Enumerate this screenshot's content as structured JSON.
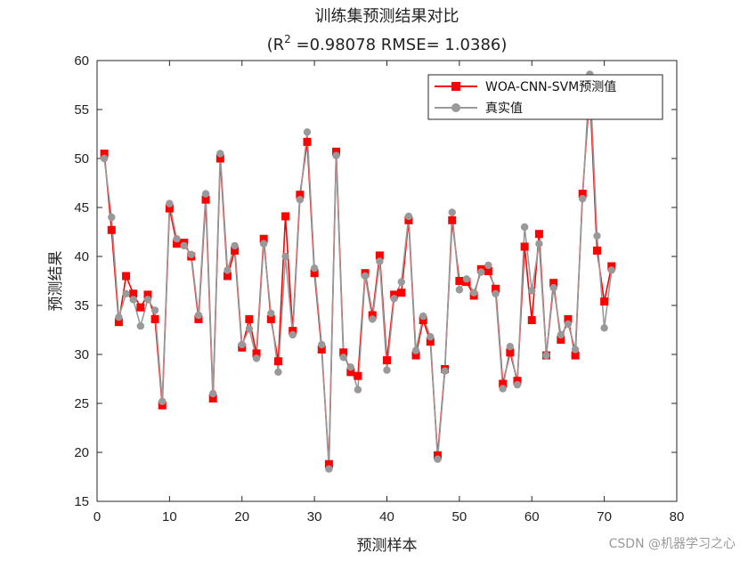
{
  "chart_data": {
    "type": "line",
    "title": "训练集预测结果对比",
    "subtitle_prefix": "(R",
    "subtitle_sup": "2",
    "subtitle_suffix": " =0.98078 RMSE= 1.0386)",
    "xlabel": "预测样本",
    "ylabel": "预测结果",
    "xlim": [
      0,
      80
    ],
    "ylim": [
      15,
      60
    ],
    "xticks": [
      0,
      10,
      20,
      30,
      40,
      50,
      60,
      70,
      80
    ],
    "yticks": [
      15,
      20,
      25,
      30,
      35,
      40,
      45,
      50,
      55,
      60
    ],
    "legend_position": "top-right",
    "series": [
      {
        "name": "WOA-CNN-SVM预测值",
        "color": "#ff0000",
        "marker": "square",
        "values": [
          50.5,
          42.7,
          33.3,
          38.0,
          36.2,
          34.8,
          36.1,
          33.6,
          24.8,
          44.9,
          41.3,
          41.4,
          40.0,
          33.6,
          45.8,
          25.5,
          50.0,
          38.0,
          40.6,
          30.7,
          33.6,
          30.1,
          41.8,
          33.6,
          29.3,
          44.1,
          32.4,
          46.3,
          51.7,
          38.3,
          30.5,
          18.8,
          50.7,
          30.2,
          28.2,
          27.8,
          38.3,
          34.0,
          40.1,
          29.4,
          36.1,
          36.3,
          43.7,
          29.9,
          33.5,
          31.3,
          19.7,
          28.5,
          43.7,
          37.5,
          37.4,
          36.0,
          38.7,
          38.5,
          36.7,
          27.0,
          30.2,
          27.3,
          41.0,
          33.5,
          42.3,
          29.9,
          37.3,
          31.5,
          33.6,
          29.9,
          46.4,
          57.0,
          40.6,
          35.4,
          39.0
        ]
      },
      {
        "name": "真实值",
        "color": "#999999",
        "marker": "circle",
        "values": [
          50.0,
          44.0,
          33.8,
          36.2,
          35.6,
          32.9,
          35.6,
          34.5,
          25.2,
          45.4,
          41.8,
          41.1,
          40.2,
          34.0,
          46.4,
          26.0,
          50.5,
          38.6,
          41.1,
          31.0,
          32.6,
          29.6,
          41.3,
          34.2,
          28.2,
          40.0,
          32.0,
          45.8,
          52.7,
          38.8,
          31.0,
          18.3,
          50.3,
          29.7,
          28.7,
          26.4,
          38.0,
          33.6,
          39.5,
          28.4,
          35.7,
          37.4,
          44.1,
          30.4,
          33.9,
          31.8,
          19.3,
          28.3,
          44.5,
          36.6,
          37.7,
          36.3,
          38.4,
          39.1,
          36.2,
          26.5,
          30.8,
          26.9,
          43.0,
          36.5,
          41.3,
          29.9,
          36.8,
          32.0,
          33.1,
          30.5,
          45.9,
          58.6,
          42.1,
          32.7,
          38.6
        ]
      }
    ]
  },
  "watermark": "CSDN @机器学习之心"
}
